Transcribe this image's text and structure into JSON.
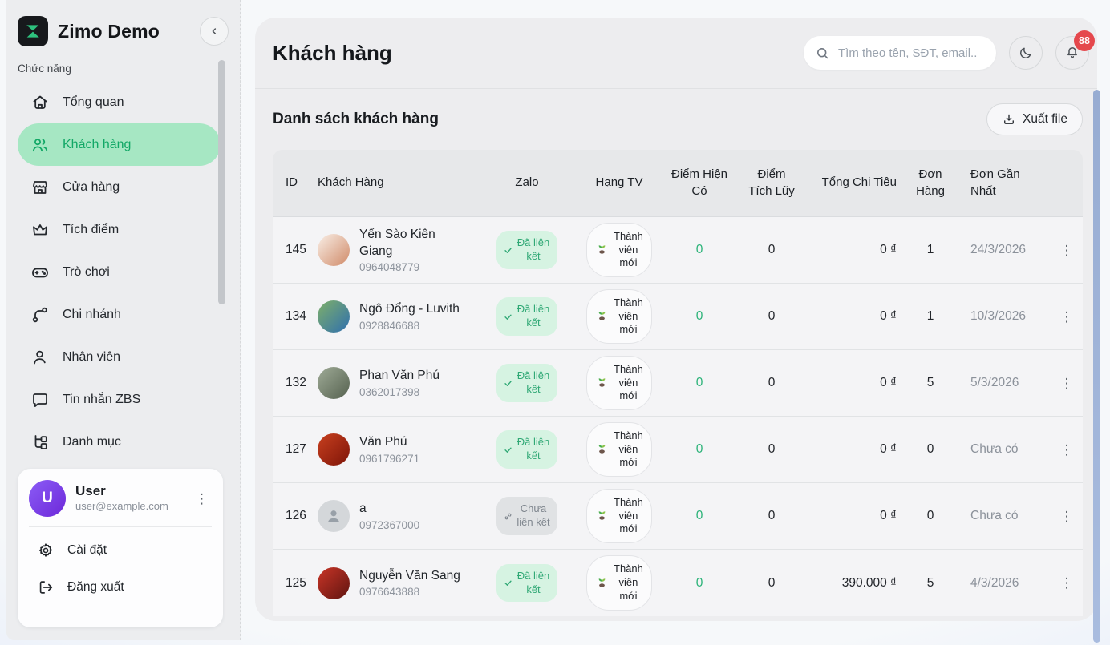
{
  "app": {
    "brand": "Zimo Demo"
  },
  "sidebar": {
    "section_label": "Chức năng",
    "items": [
      {
        "icon": "home",
        "label": "Tổng quan",
        "active": false
      },
      {
        "icon": "users",
        "label": "Khách hàng",
        "active": true
      },
      {
        "icon": "store",
        "label": "Cửa hàng",
        "active": false
      },
      {
        "icon": "crown",
        "label": "Tích điểm",
        "active": false
      },
      {
        "icon": "gamepad",
        "label": "Trò chơi",
        "active": false
      },
      {
        "icon": "branch",
        "label": "Chi nhánh",
        "active": false
      },
      {
        "icon": "user",
        "label": "Nhân viên",
        "active": false
      },
      {
        "icon": "message",
        "label": "Tin nhắn ZBS",
        "active": false
      },
      {
        "icon": "category",
        "label": "Danh mục",
        "active": false
      }
    ],
    "user": {
      "initial": "U",
      "name": "User",
      "email": "user@example.com"
    },
    "footer_items": [
      {
        "icon": "gear",
        "label": "Cài đặt"
      },
      {
        "icon": "logout",
        "label": "Đăng xuất"
      }
    ]
  },
  "header": {
    "title": "Khách hàng",
    "search_placeholder": "Tìm theo tên, SĐT, email..",
    "notification_count": "88"
  },
  "list": {
    "title": "Danh sách khách hàng",
    "export_label": "Xuất file"
  },
  "table": {
    "columns": [
      "ID",
      "Khách Hàng",
      "Zalo",
      "Hạng TV",
      "Điểm Hiện Có",
      "Điểm Tích Lũy",
      "Tổng Chi Tiêu",
      "Đơn Hàng",
      "Đơn Gần Nhất"
    ],
    "zalo_linked_label": "Đã liên kết",
    "zalo_unlinked_label": "Chưa liên kết",
    "rows": [
      {
        "id": "145",
        "name": "Yến Sào Kiên Giang",
        "phone": "0964048779",
        "zalo_linked": true,
        "tier": "Thành viên mới",
        "points_current": "0",
        "points_total": "0",
        "spend": "0 ₫",
        "orders": "1",
        "last_order": "24/3/2026",
        "avatar": "photo",
        "avatar_colors": [
          "#f9efe7",
          "#d08a68"
        ]
      },
      {
        "id": "134",
        "name": "Ngô Đổng - Luvith",
        "phone": "0928846688",
        "zalo_linked": true,
        "tier": "Thành viên mới",
        "points_current": "0",
        "points_total": "0",
        "spend": "0 ₫",
        "orders": "1",
        "last_order": "10/3/2026",
        "avatar": "photo",
        "avatar_colors": [
          "#7fb069",
          "#2f6fae"
        ]
      },
      {
        "id": "132",
        "name": "Phan Văn Phú",
        "phone": "0362017398",
        "zalo_linked": true,
        "tier": "Thành viên mới",
        "points_current": "0",
        "points_total": "0",
        "spend": "0 ₫",
        "orders": "5",
        "last_order": "5/3/2026",
        "avatar": "photo",
        "avatar_colors": [
          "#9fab97",
          "#55614f"
        ]
      },
      {
        "id": "127",
        "name": "Văn Phú",
        "phone": "0961796271",
        "zalo_linked": true,
        "tier": "Thành viên mới",
        "points_current": "0",
        "points_total": "0",
        "spend": "0 ₫",
        "orders": "0",
        "last_order": "Chưa có",
        "avatar": "photo",
        "avatar_colors": [
          "#c8401f",
          "#7e1408"
        ]
      },
      {
        "id": "126",
        "name": "a",
        "phone": "0972367000",
        "zalo_linked": false,
        "tier": "Thành viên mới",
        "points_current": "0",
        "points_total": "0",
        "spend": "0 ₫",
        "orders": "0",
        "last_order": "Chưa có",
        "avatar": "placeholder",
        "avatar_colors": [
          "#d4d7da",
          "#d4d7da"
        ]
      },
      {
        "id": "125",
        "name": "Nguyễn Văn Sang",
        "phone": "0976643888",
        "zalo_linked": true,
        "tier": "Thành viên mới",
        "points_current": "0",
        "points_total": "0",
        "spend": "390.000 ₫",
        "orders": "5",
        "last_order": "4/3/2026",
        "avatar": "photo",
        "avatar_colors": [
          "#c93527",
          "#5f1410"
        ]
      }
    ]
  },
  "colors": {
    "active_item_bg": "#a6e7c3",
    "active_item_text": "#12a866",
    "linked_bg": "#d6f3e2",
    "linked_text": "#31a976",
    "unlinked_bg": "#e0e2e4",
    "unlinked_text": "#7f868e",
    "points_green": "#2cb379",
    "badge_red": "#e5484d",
    "logo_green": "#2ec27e",
    "avatar_purple_gradient": [
      "#8b5cf6",
      "#6d28d9"
    ]
  }
}
